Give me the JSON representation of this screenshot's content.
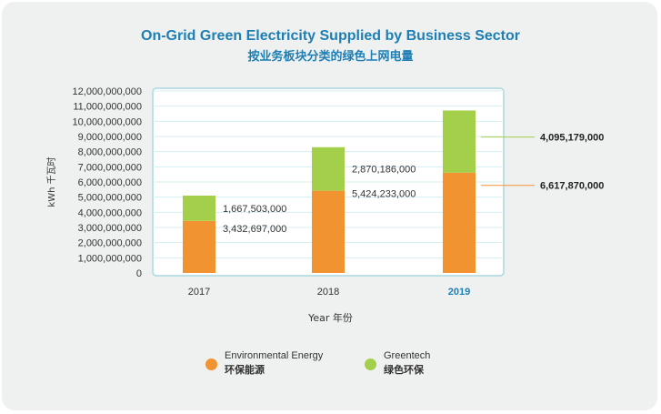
{
  "title_en": "On-Grid Green Electricity Supplied by Business Sector",
  "title_zh": "按业务板块分类的绿色上网电量",
  "chart_data": {
    "type": "bar",
    "stacked": true,
    "categories": [
      "2017",
      "2018",
      "2019"
    ],
    "highlight_category": "2019",
    "series": [
      {
        "name": "Environmental Energy 环保能源",
        "values": [
          3432697000,
          5424233000,
          6617870000
        ],
        "color": "#f29332"
      },
      {
        "name": "Greentech 绿色环保",
        "values": [
          1667503000,
          2870186000,
          4095179000
        ],
        "color": "#a4cf4a"
      }
    ],
    "ylabel": "kWh 千瓦时",
    "xlabel": "Year  年份",
    "ylim": [
      0,
      12000000000
    ],
    "yticks": [
      0,
      1000000000,
      2000000000,
      3000000000,
      4000000000,
      5000000000,
      6000000000,
      7000000000,
      8000000000,
      9000000000,
      10000000000,
      11000000000,
      12000000000
    ],
    "grid": true,
    "data_labels": {
      "2017": {
        "env": "3,432,697,000",
        "green": "1,667,503,000"
      },
      "2018": {
        "env": "5,424,233,000",
        "green": "2,870,186,000"
      },
      "2019": {
        "env": "6,617,870,000",
        "green": "4,095,179,000"
      }
    }
  },
  "legend": [
    {
      "en": "Environmental Energy",
      "zh": "环保能源",
      "color": "#f29332"
    },
    {
      "en": "Greentech",
      "zh": "绿色环保",
      "color": "#a4cf4a"
    }
  ]
}
